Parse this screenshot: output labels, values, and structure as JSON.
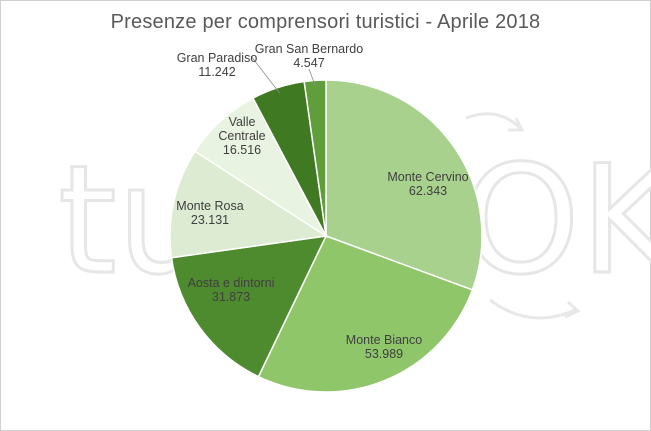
{
  "chart_data": {
    "type": "pie",
    "title": "Presenze per comprensori turistici - Aprile 2018",
    "slices": [
      {
        "label": "Monte Cervino",
        "value": 62343,
        "value_label": "62.343",
        "color": "#a9d18e"
      },
      {
        "label": "Monte Bianco",
        "value": 53989,
        "value_label": "53.989",
        "color": "#8fc66a"
      },
      {
        "label": "Aosta e dintorni",
        "value": 31873,
        "value_label": "31.873",
        "color": "#4e8a2e"
      },
      {
        "label": "Monte Rosa",
        "value": 23131,
        "value_label": "23.131",
        "color": "#dcebd1"
      },
      {
        "label": "Valle Centrale",
        "value": 16516,
        "value_label": "16.516",
        "color": "#e9f3e1"
      },
      {
        "label": "Gran Paradiso",
        "value": 11242,
        "value_label": "11.242",
        "color": "#3f7a23"
      },
      {
        "label": "Gran San Bernardo",
        "value": 4547,
        "value_label": "4.547",
        "color": "#5f9e3a"
      }
    ],
    "start_angle_deg": 0,
    "direction": "clockwise",
    "legend": "none"
  },
  "watermark": {
    "left_text": "tu",
    "right_text": "OK"
  }
}
